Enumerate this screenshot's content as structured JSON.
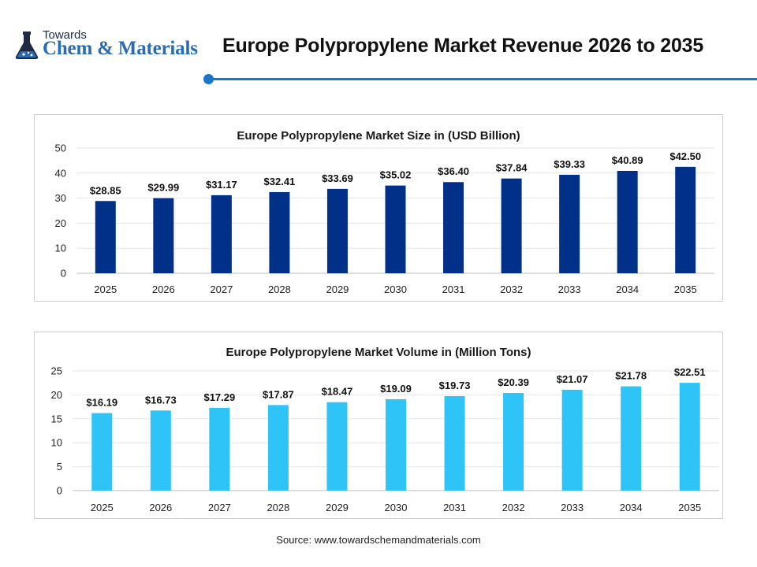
{
  "logo": {
    "top_text": "Towards",
    "main_text": "Chem & Materials"
  },
  "page_title": "Europe Polypropylene Market Revenue 2026 to 2035",
  "accent_color": "#1976c9",
  "source": "Source: www.towardschemandmaterials.com",
  "chart_data": [
    {
      "type": "bar",
      "title": "Europe Polypropylene Market Size in (USD Billion)",
      "categories": [
        "2025",
        "2026",
        "2027",
        "2028",
        "2029",
        "2030",
        "2031",
        "2032",
        "2033",
        "2034",
        "2035"
      ],
      "series": [
        {
          "values": [
            28.85,
            29.99,
            31.17,
            32.41,
            33.69,
            35.02,
            36.4,
            37.84,
            39.33,
            40.89,
            42.5
          ]
        }
      ],
      "data_labels": [
        "$28.85",
        "$29.99",
        "$31.17",
        "$32.41",
        "$33.69",
        "$35.02",
        "$36.40",
        "$37.84",
        "$39.33",
        "$40.89",
        "$42.50"
      ],
      "yticks": [
        0,
        10,
        20,
        30,
        40,
        50
      ],
      "ylim": [
        0,
        50
      ],
      "color": "#003087",
      "grid": true,
      "xlabel": "",
      "ylabel": ""
    },
    {
      "type": "bar",
      "title": "Europe Polypropylene Market Volume in (Million Tons)",
      "categories": [
        "2025",
        "2026",
        "2027",
        "2028",
        "2029",
        "2030",
        "2031",
        "2032",
        "2033",
        "2034",
        "2035"
      ],
      "series": [
        {
          "values": [
            16.19,
            16.73,
            17.29,
            17.87,
            18.47,
            19.09,
            19.73,
            20.39,
            21.07,
            21.78,
            22.51
          ]
        }
      ],
      "data_labels": [
        "$16.19",
        "$16.73",
        "$17.29",
        "$17.87",
        "$18.47",
        "$19.09",
        "$19.73",
        "$20.39",
        "$21.07",
        "$21.78",
        "$22.51"
      ],
      "yticks": [
        0,
        5,
        10,
        15,
        20,
        25
      ],
      "ylim": [
        0,
        25
      ],
      "color": "#2ec4f7",
      "grid": true,
      "xlabel": "",
      "ylabel": ""
    }
  ]
}
